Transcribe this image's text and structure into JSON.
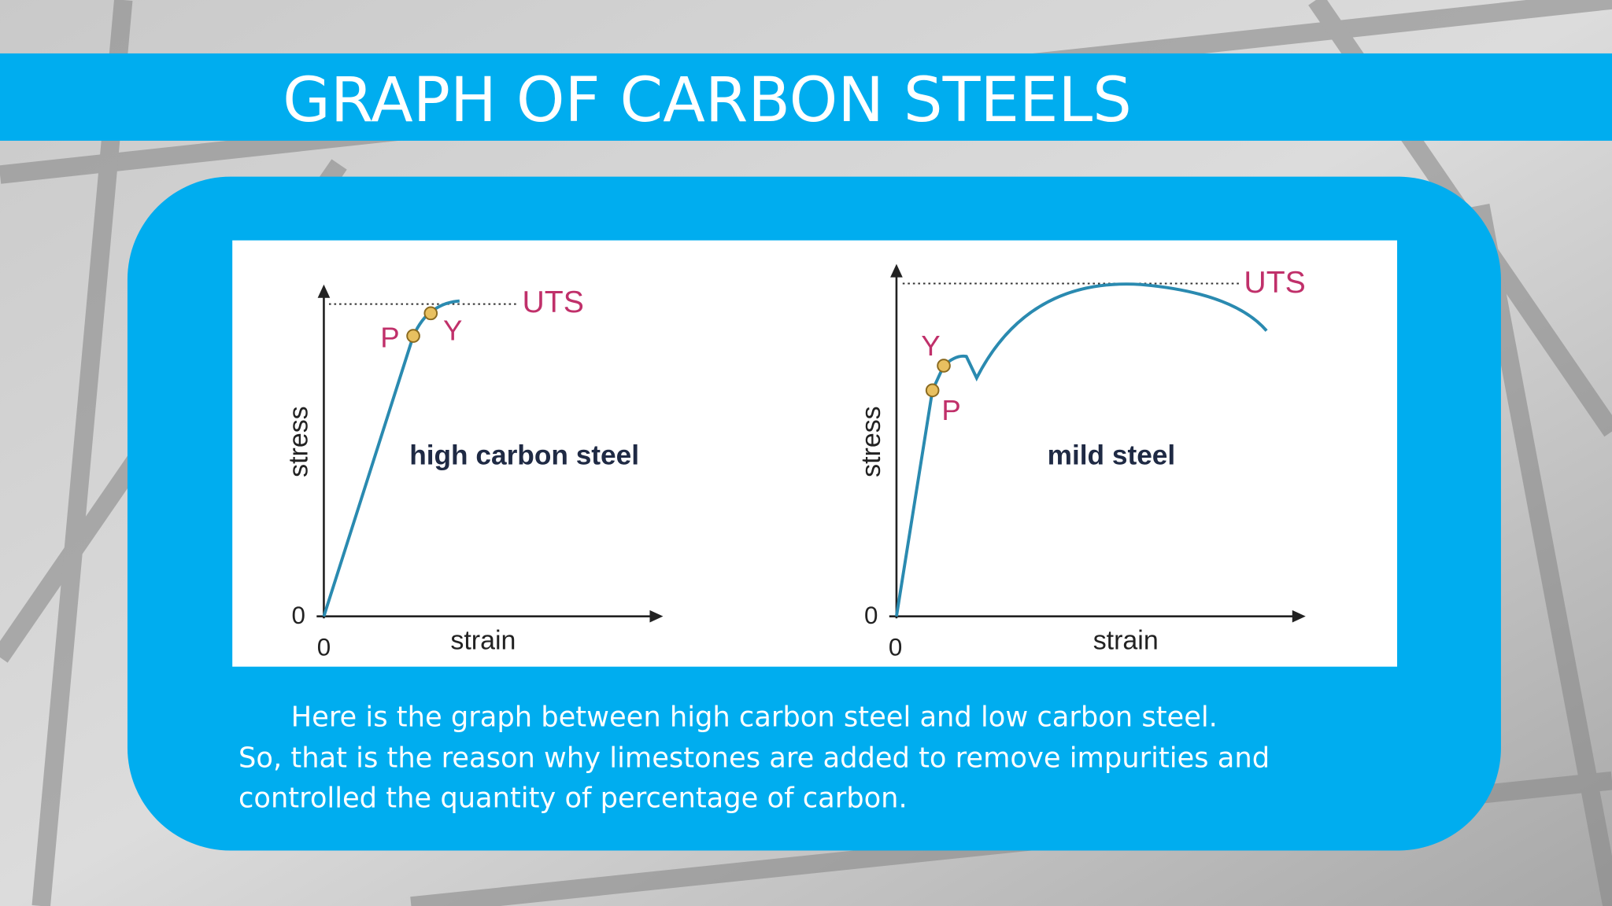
{
  "header": {
    "title": "GRAPH OF CARBON STEELS"
  },
  "graphs": [
    {
      "label": "high carbon steel",
      "y_axis": "stress",
      "x_axis": "strain",
      "y_origin": "0",
      "x_origin": "0",
      "point_p": "P",
      "point_y": "Y",
      "uts": "UTS"
    },
    {
      "label": "mild steel",
      "y_axis": "stress",
      "x_axis": "strain",
      "y_origin": "0",
      "x_origin": "0",
      "point_p": "P",
      "point_y": "Y",
      "uts": "UTS"
    }
  ],
  "description": [
    "Here is the graph between high carbon steel and low carbon steel.",
    "So, that is the reason why limestones are added to remove impurities and",
    "controlled the quantity of percentage of carbon."
  ]
}
